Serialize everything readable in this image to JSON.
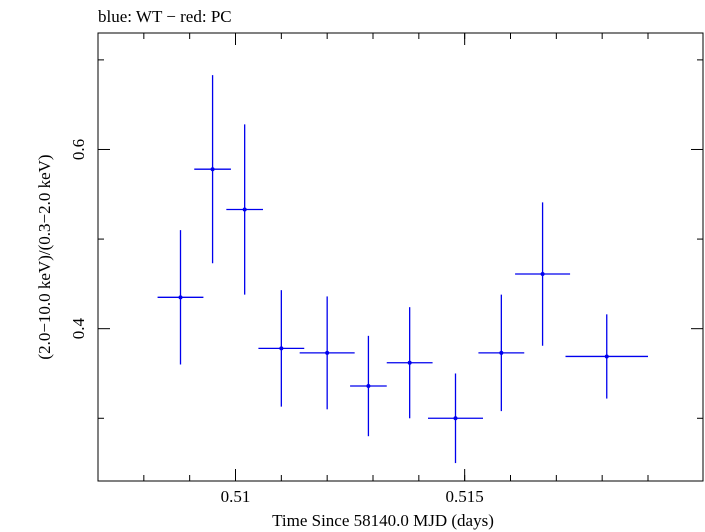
{
  "chart_data": {
    "type": "scatter",
    "title": "blue: WT − red: PC",
    "xlabel": "Time Since 58140.0 MJD (days)",
    "ylabel": "(2.0−10.0 keV)/(0.3−2.0 keV)",
    "xlim": [
      0.507,
      0.5202
    ],
    "ylim": [
      0.23,
      0.73
    ],
    "x_ticks": [
      {
        "value": 0.51,
        "label": "0.51"
      },
      {
        "value": 0.515,
        "label": "0.515"
      }
    ],
    "y_ticks": [
      {
        "value": 0.4,
        "label": "0.4"
      },
      {
        "value": 0.6,
        "label": "0.6"
      }
    ],
    "grid": false,
    "series": [
      {
        "color": "#0000ee",
        "points": [
          {
            "x": 0.5088,
            "xerr": 0.0005,
            "y": 0.435,
            "yerr_low": 0.075,
            "yerr_high": 0.075
          },
          {
            "x": 0.5095,
            "xerr": 0.0004,
            "y": 0.578,
            "yerr_low": 0.105,
            "yerr_high": 0.105
          },
          {
            "x": 0.5102,
            "xerr": 0.0004,
            "y": 0.533,
            "yerr_low": 0.095,
            "yerr_high": 0.095
          },
          {
            "x": 0.511,
            "xerr": 0.0005,
            "y": 0.378,
            "yerr_low": 0.065,
            "yerr_high": 0.065
          },
          {
            "x": 0.512,
            "xerr": 0.0006,
            "y": 0.373,
            "yerr_low": 0.063,
            "yerr_high": 0.063
          },
          {
            "x": 0.5129,
            "xerr": 0.0004,
            "y": 0.336,
            "yerr_low": 0.056,
            "yerr_high": 0.056
          },
          {
            "x": 0.5138,
            "xerr": 0.0005,
            "y": 0.362,
            "yerr_low": 0.062,
            "yerr_high": 0.062
          },
          {
            "x": 0.5148,
            "xerr": 0.0006,
            "y": 0.3,
            "yerr_low": 0.05,
            "yerr_high": 0.05
          },
          {
            "x": 0.5158,
            "xerr": 0.0005,
            "y": 0.373,
            "yerr_low": 0.065,
            "yerr_high": 0.065
          },
          {
            "x": 0.5167,
            "xerr": 0.0006,
            "y": 0.461,
            "yerr_low": 0.08,
            "yerr_high": 0.08
          },
          {
            "x": 0.5181,
            "xerr": 0.0009,
            "y": 0.369,
            "yerr_low": 0.047,
            "yerr_high": 0.047
          }
        ]
      }
    ]
  }
}
